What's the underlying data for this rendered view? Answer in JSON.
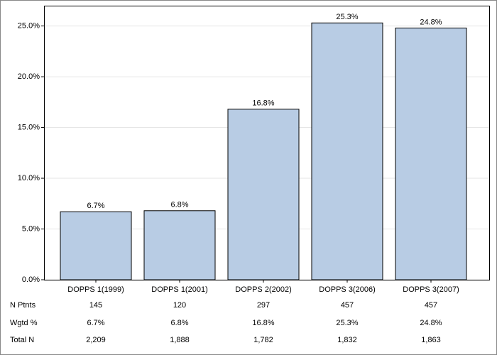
{
  "chart_data": {
    "type": "bar",
    "categories": [
      "DOPPS 1(1999)",
      "DOPPS 1(2001)",
      "DOPPS 2(2002)",
      "DOPPS 3(2006)",
      "DOPPS 3(2007)"
    ],
    "values": [
      6.7,
      6.8,
      16.8,
      25.3,
      24.8
    ],
    "value_labels": [
      "6.7%",
      "6.8%",
      "16.8%",
      "25.3%",
      "24.8%"
    ],
    "color": "#b8cce4",
    "ylim": [
      0,
      27
    ],
    "yticks": [
      {
        "value": 0,
        "label": "0.0%"
      },
      {
        "value": 5,
        "label": "5.0%"
      },
      {
        "value": 10,
        "label": "10.0%"
      },
      {
        "value": 15,
        "label": "15.0%"
      },
      {
        "value": 20,
        "label": "20.0%"
      },
      {
        "value": 25,
        "label": "25.0%"
      }
    ],
    "grid": true,
    "table": {
      "rows": [
        {
          "label": "N Ptnts",
          "values": [
            145,
            120,
            297,
            457,
            457
          ]
        },
        {
          "label": "Wgtd %",
          "values": [
            6.7,
            6.8,
            16.8,
            25.3,
            24.8
          ],
          "value_labels": [
            "6.7%",
            "6.8%",
            "16.8%",
            "25.3%",
            "24.8%"
          ]
        },
        {
          "label": "Total N",
          "values": [
            2209,
            1888,
            1782,
            1832,
            1863
          ],
          "value_labels": [
            "2,209",
            "1,888",
            "1,782",
            "1,832",
            "1,863"
          ]
        }
      ]
    }
  }
}
